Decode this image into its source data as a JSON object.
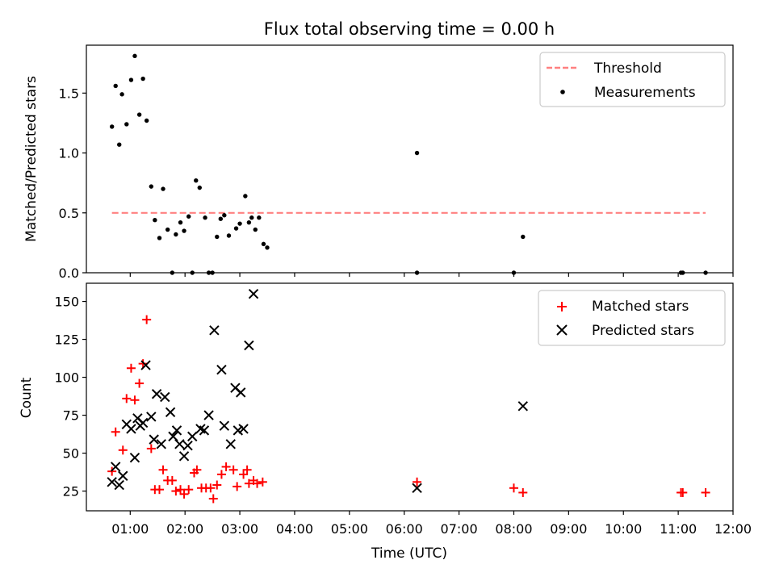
{
  "chart_data": [
    {
      "type": "scatter",
      "id": "ratio",
      "title": "Flux total observing time = 0.00 h",
      "xlabel": "",
      "ylabel": "Matched/Predicted stars",
      "xlim": [
        "00:12",
        "12:00"
      ],
      "ylim": [
        0.0,
        1.9
      ],
      "y_ticks": [
        "0.0",
        "0.5",
        "1.0",
        "1.5"
      ],
      "x_tick_labels_visible": false,
      "legend_position": "upper right",
      "threshold": {
        "name": "Threshold",
        "value": 0.5,
        "x_range": [
          "00:40",
          "11:30"
        ],
        "color": "#ff8080",
        "style": "dashed"
      },
      "series": [
        {
          "name": "Measurements",
          "color": "#000000",
          "marker": "dot",
          "points": [
            [
              "00:40",
              1.22
            ],
            [
              "00:44",
              1.56
            ],
            [
              "00:48",
              1.07
            ],
            [
              "00:51",
              1.49
            ],
            [
              "00:56",
              1.24
            ],
            [
              "01:01",
              1.61
            ],
            [
              "01:05",
              1.81
            ],
            [
              "01:10",
              1.32
            ],
            [
              "01:14",
              1.62
            ],
            [
              "01:18",
              1.27
            ],
            [
              "01:23",
              0.72
            ],
            [
              "01:27",
              0.44
            ],
            [
              "01:32",
              0.29
            ],
            [
              "01:36",
              0.7
            ],
            [
              "01:41",
              0.36
            ],
            [
              "01:46",
              0.0
            ],
            [
              "01:50",
              0.32
            ],
            [
              "01:55",
              0.42
            ],
            [
              "01:59",
              0.35
            ],
            [
              "02:04",
              0.47
            ],
            [
              "02:08",
              0.0
            ],
            [
              "02:12",
              0.77
            ],
            [
              "02:16",
              0.71
            ],
            [
              "02:22",
              0.46
            ],
            [
              "02:26",
              0.0
            ],
            [
              "02:30",
              0.0
            ],
            [
              "02:35",
              0.3
            ],
            [
              "02:39",
              0.45
            ],
            [
              "02:43",
              0.48
            ],
            [
              "02:48",
              0.31
            ],
            [
              "02:56",
              0.37
            ],
            [
              "03:00",
              0.41
            ],
            [
              "03:06",
              0.64
            ],
            [
              "03:10",
              0.42
            ],
            [
              "03:13",
              0.46
            ],
            [
              "03:17",
              0.36
            ],
            [
              "03:21",
              0.46
            ],
            [
              "03:26",
              0.24
            ],
            [
              "03:30",
              0.21
            ],
            [
              "06:14",
              1.0
            ],
            [
              "06:14",
              0.0
            ],
            [
              "08:00",
              0.0
            ],
            [
              "08:10",
              0.3
            ],
            [
              "11:03",
              0.0
            ],
            [
              "11:05",
              0.0
            ],
            [
              "11:30",
              0.0
            ]
          ]
        }
      ]
    },
    {
      "type": "scatter",
      "id": "counts",
      "title": "",
      "xlabel": "Time (UTC)",
      "ylabel": "Count",
      "xlim": [
        "00:12",
        "12:00"
      ],
      "ylim": [
        12,
        162
      ],
      "y_ticks": [
        "25",
        "50",
        "75",
        "100",
        "125",
        "150"
      ],
      "x_ticks": [
        "01:00",
        "02:00",
        "03:00",
        "04:00",
        "05:00",
        "06:00",
        "07:00",
        "08:00",
        "09:00",
        "10:00",
        "11:00",
        "12:00"
      ],
      "legend_position": "upper right",
      "series": [
        {
          "name": "Matched stars",
          "color": "#ff0000",
          "marker": "plus",
          "points": [
            [
              "00:40",
              38
            ],
            [
              "00:44",
              64
            ],
            [
              "00:52",
              52
            ],
            [
              "00:56",
              86
            ],
            [
              "01:01",
              106
            ],
            [
              "01:05",
              85
            ],
            [
              "01:10",
              96
            ],
            [
              "01:14",
              109
            ],
            [
              "01:18",
              138
            ],
            [
              "01:23",
              53
            ],
            [
              "01:27",
              26
            ],
            [
              "01:32",
              26
            ],
            [
              "01:36",
              39
            ],
            [
              "01:41",
              32
            ],
            [
              "01:46",
              32
            ],
            [
              "01:50",
              25
            ],
            [
              "01:55",
              26
            ],
            [
              "01:59",
              23
            ],
            [
              "02:04",
              26
            ],
            [
              "02:10",
              37
            ],
            [
              "02:13",
              39
            ],
            [
              "02:18",
              27
            ],
            [
              "02:23",
              27
            ],
            [
              "02:28",
              27
            ],
            [
              "02:31",
              20
            ],
            [
              "02:35",
              29
            ],
            [
              "02:40",
              36
            ],
            [
              "02:45",
              41
            ],
            [
              "02:53",
              39
            ],
            [
              "02:57",
              28
            ],
            [
              "03:04",
              36
            ],
            [
              "03:08",
              39
            ],
            [
              "03:10",
              30
            ],
            [
              "03:15",
              32
            ],
            [
              "03:19",
              30
            ],
            [
              "03:25",
              31
            ],
            [
              "06:14",
              31
            ],
            [
              "08:00",
              27
            ],
            [
              "08:10",
              24
            ],
            [
              "11:03",
              24
            ],
            [
              "11:05",
              24
            ],
            [
              "11:30",
              24
            ]
          ]
        },
        {
          "name": "Predicted stars",
          "color": "#000000",
          "marker": "cross",
          "points": [
            [
              "00:40",
              31
            ],
            [
              "00:44",
              41
            ],
            [
              "00:48",
              29
            ],
            [
              "00:52",
              35
            ],
            [
              "00:56",
              69
            ],
            [
              "01:01",
              66
            ],
            [
              "01:05",
              47
            ],
            [
              "01:08",
              73
            ],
            [
              "01:11",
              68
            ],
            [
              "01:14",
              70
            ],
            [
              "01:17",
              108
            ],
            [
              "01:23",
              74
            ],
            [
              "01:26",
              59
            ],
            [
              "01:29",
              89
            ],
            [
              "01:34",
              56
            ],
            [
              "01:38",
              87
            ],
            [
              "01:44",
              77
            ],
            [
              "01:47",
              61
            ],
            [
              "01:51",
              65
            ],
            [
              "01:54",
              56
            ],
            [
              "01:59",
              48
            ],
            [
              "02:03",
              55
            ],
            [
              "02:08",
              61
            ],
            [
              "02:17",
              66
            ],
            [
              "02:21",
              65
            ],
            [
              "02:26",
              75
            ],
            [
              "02:32",
              131
            ],
            [
              "02:40",
              105
            ],
            [
              "02:43",
              68
            ],
            [
              "02:50",
              56
            ],
            [
              "02:55",
              93
            ],
            [
              "02:58",
              65
            ],
            [
              "03:01",
              90
            ],
            [
              "03:04",
              66
            ],
            [
              "03:10",
              121
            ],
            [
              "03:15",
              155
            ],
            [
              "06:14",
              27
            ],
            [
              "08:10",
              81
            ]
          ]
        }
      ]
    }
  ]
}
